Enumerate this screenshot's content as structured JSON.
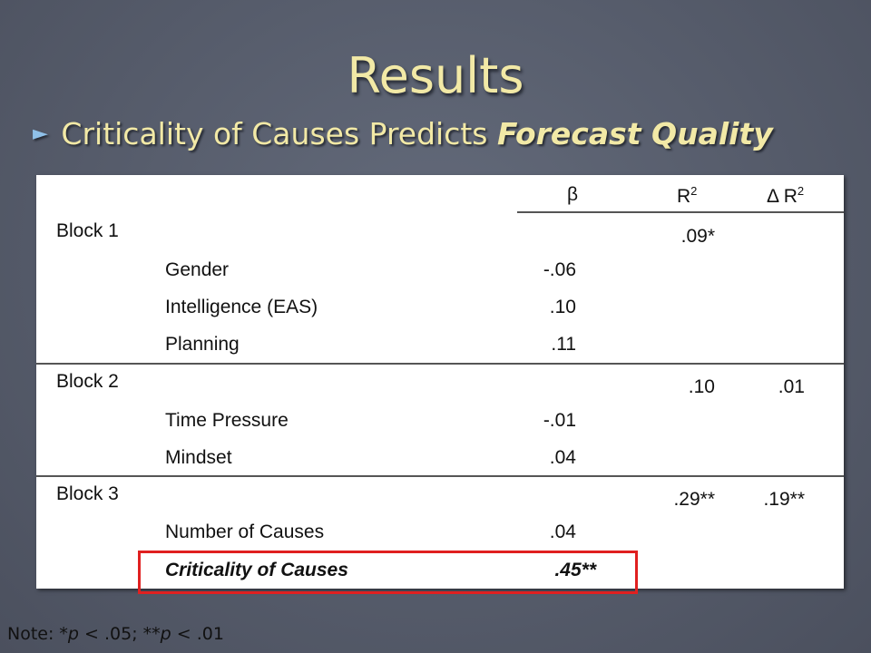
{
  "slide": {
    "title": "Results",
    "bullet_prefix": "Criticality of Causes Predicts",
    "bullet_emphasis": "Forecast Quality",
    "note_prefix": "Note: *",
    "note_p1": "p",
    "note_mid": " < .05; **",
    "note_p2": "p",
    "note_suffix": " < .01"
  },
  "table": {
    "headers": {
      "beta": "β",
      "r2": "R",
      "r2_sup": "2",
      "dr2": "Δ R",
      "dr2_sup": "2"
    },
    "blocks": [
      {
        "label": "Block 1",
        "r2": ".09*",
        "dr2": "",
        "rows": [
          {
            "label": "Gender",
            "beta": "-.06"
          },
          {
            "label": "Intelligence (EAS)",
            "beta": ".10"
          },
          {
            "label": "Planning",
            "beta": ".11"
          }
        ]
      },
      {
        "label": "Block 2",
        "r2": ".10",
        "dr2": ".01",
        "rows": [
          {
            "label": "Time Pressure",
            "beta": "-.01"
          },
          {
            "label": "Mindset",
            "beta": ".04"
          }
        ]
      },
      {
        "label": "Block 3",
        "r2": ".29**",
        "dr2": ".19**",
        "rows": [
          {
            "label": "Number of Causes",
            "beta": ".04"
          },
          {
            "label": "Criticality of Causes",
            "beta": ".45**"
          }
        ]
      }
    ]
  },
  "colors": {
    "title": "#f2e9a6",
    "highlight": "#e02020",
    "background": "#5a6070"
  }
}
